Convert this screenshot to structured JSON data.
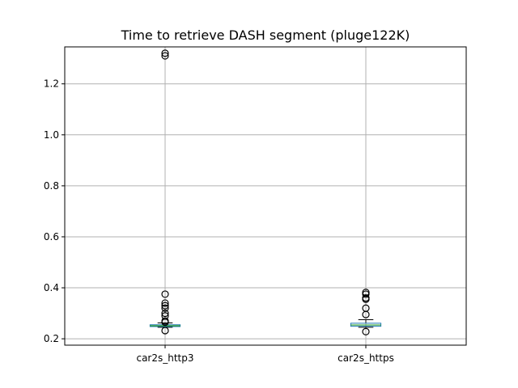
{
  "chart_data": {
    "type": "boxplot",
    "title": "Time to retrieve DASH segment (pluge122K)",
    "xlabel": "",
    "ylabel": "",
    "ylim": [
      0.175,
      1.345
    ],
    "yticks": [
      0.2,
      0.4,
      0.6,
      0.8,
      1.0,
      1.2
    ],
    "ytick_labels": [
      "0.2",
      "0.4",
      "0.6",
      "0.8",
      "1.0",
      "1.2"
    ],
    "categories": [
      "car2s_http3",
      "car2s_https"
    ],
    "grid": true,
    "series": [
      {
        "whisker_low": 0.245,
        "q1": 0.248,
        "median": 0.251,
        "q3": 0.255,
        "whisker_high": 0.262,
        "outliers": [
          1.32,
          1.31,
          0.375,
          0.34,
          0.33,
          0.32,
          0.3,
          0.29,
          0.27,
          0.265,
          0.232
        ]
      },
      {
        "whisker_low": 0.245,
        "q1": 0.249,
        "median": 0.254,
        "q3": 0.261,
        "whisker_high": 0.275,
        "outliers": [
          0.382,
          0.375,
          0.36,
          0.355,
          0.32,
          0.295,
          0.228
        ]
      }
    ],
    "colors": {
      "box": "#1f77b4",
      "median": "#2ca02c",
      "grid": "#b0b0b0",
      "whisker": "#000000",
      "outlier": "#000000"
    }
  }
}
